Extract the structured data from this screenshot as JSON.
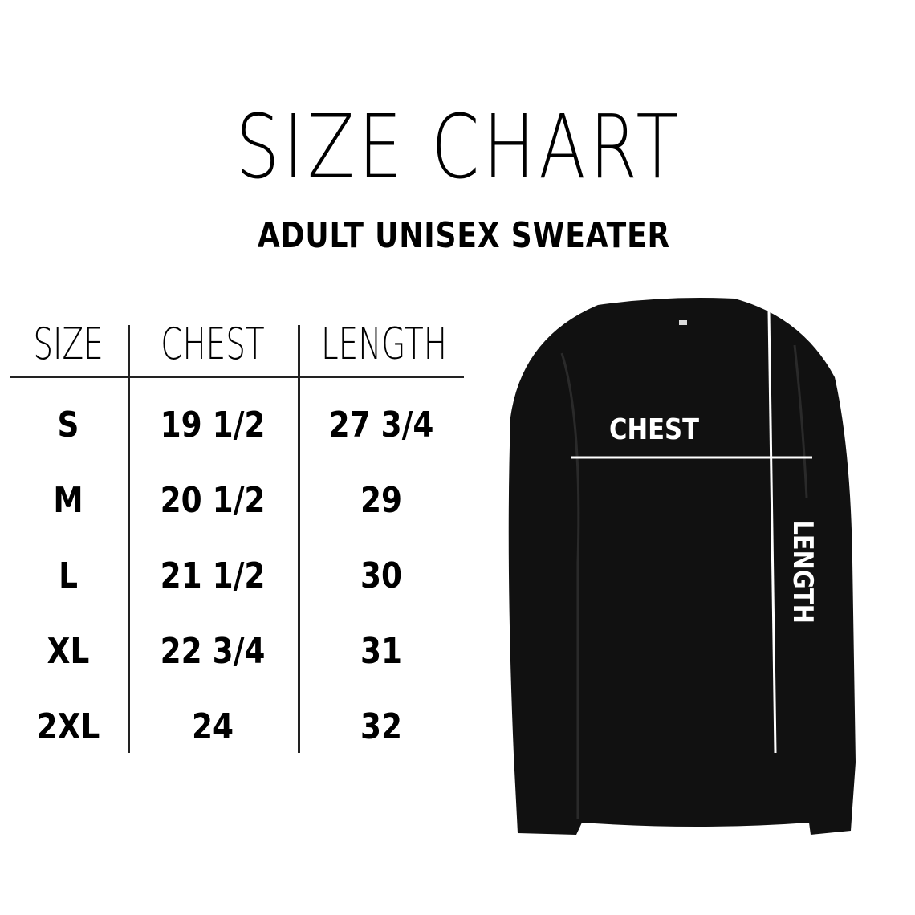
{
  "title": "SIZE CHART",
  "subtitle": "ADULT UNISEX SWEATER",
  "table": {
    "headers": [
      "SIZE",
      "CHEST",
      "LENGTH"
    ],
    "rows": [
      [
        "S",
        "19 1/2",
        "27 3/4"
      ],
      [
        "M",
        "20 1/2",
        "29"
      ],
      [
        "L",
        "21 1/2",
        "30"
      ],
      [
        "XL",
        "22 3/4",
        "31"
      ],
      [
        "2XL",
        "24",
        "32"
      ]
    ]
  },
  "diagram": {
    "chest_label": "CHEST",
    "length_label": "LENGTH",
    "garment_color": "#111111",
    "line_color": "#ffffff"
  }
}
